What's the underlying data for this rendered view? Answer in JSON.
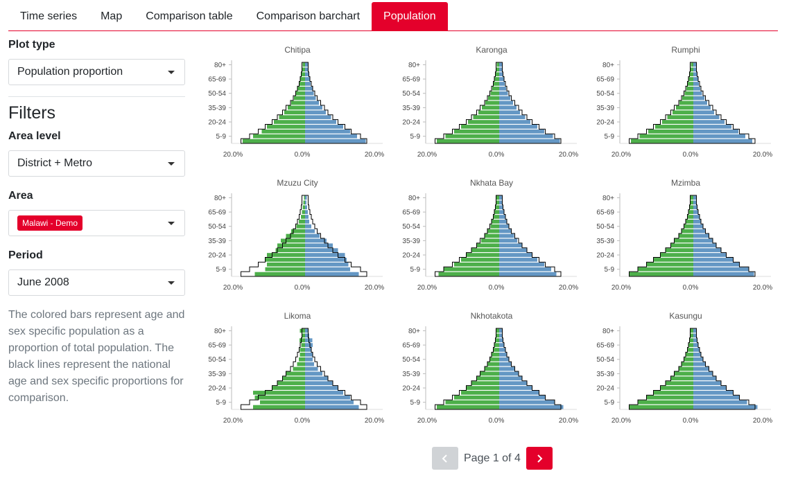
{
  "tabs": [
    {
      "label": "Time series",
      "active": false
    },
    {
      "label": "Map",
      "active": false
    },
    {
      "label": "Comparison table",
      "active": false
    },
    {
      "label": "Comparison barchart",
      "active": false
    },
    {
      "label": "Population",
      "active": true
    }
  ],
  "sidebar": {
    "plot_type_label": "Plot type",
    "plot_type_value": "Population proportion",
    "filters_title": "Filters",
    "area_level_label": "Area level",
    "area_level_value": "District + Metro",
    "area_label": "Area",
    "area_chip": "Malawi - Demo",
    "period_label": "Period",
    "period_value": "June 2008",
    "description": "The colored bars represent age and sex specific population as a proportion of total population. The black lines represent the national age and sex specific proportions for comparison."
  },
  "pagination": {
    "text": "Page 1 of 4"
  },
  "colors": {
    "accent": "#e4002b",
    "male": "#4daf4a",
    "female": "#6497c4",
    "reference": "#000000"
  },
  "chart_data": {
    "type": "bar",
    "shared": {
      "age_groups": [
        "0-4",
        "5-9",
        "10-14",
        "15-19",
        "20-24",
        "25-29",
        "30-34",
        "35-39",
        "40-44",
        "45-49",
        "50-54",
        "55-59",
        "60-64",
        "65-69",
        "70-74",
        "75-79",
        "80+"
      ],
      "y_tick_labels": [
        "80+",
        "65-69",
        "50-54",
        "35-39",
        "20-24",
        "5-9"
      ],
      "x_tick_labels": [
        "20.0%",
        "0.0%",
        "20.0%"
      ],
      "xlim": [
        -20,
        20
      ],
      "reference_male": [
        18.5,
        16,
        13.5,
        11.5,
        9.5,
        8,
        6.5,
        5.5,
        4.2,
        3.4,
        2.7,
        2.2,
        1.7,
        1.4,
        1.1,
        0.9,
        0.9
      ],
      "reference_female": [
        17.8,
        16,
        13.3,
        11.5,
        9.5,
        8,
        6.6,
        5.6,
        4.5,
        3.5,
        2.8,
        2.2,
        1.8,
        1.4,
        1.1,
        0.9,
        0.9
      ]
    },
    "charts": [
      {
        "title": "Chitipa",
        "male": [
          18,
          15,
          12.5,
          11,
          9,
          7.5,
          6,
          5,
          4,
          3.2,
          2.6,
          2.1,
          1.6,
          1.3,
          1,
          0.8,
          0.7
        ],
        "female": [
          17.5,
          15,
          13,
          11,
          9,
          7.5,
          6,
          5,
          4,
          3.1,
          2.5,
          2.1,
          1.6,
          1.3,
          1,
          0.8,
          0.8
        ]
      },
      {
        "title": "Karonga",
        "male": [
          18,
          15.5,
          13,
          11,
          9,
          7.5,
          6,
          5,
          4,
          3.2,
          2.5,
          2,
          1.6,
          1.3,
          1,
          0.8,
          0.7
        ],
        "female": [
          17.5,
          15.5,
          13,
          11,
          9,
          7.5,
          6,
          5,
          4,
          3.2,
          2.5,
          2,
          1.6,
          1.3,
          1,
          0.8,
          0.8
        ]
      },
      {
        "title": "Rumphi",
        "male": [
          18,
          15.5,
          13,
          11,
          9,
          7.5,
          6,
          5,
          4,
          3.2,
          2.5,
          2,
          1.6,
          1.3,
          1,
          0.8,
          0.7
        ],
        "female": [
          17,
          15,
          13,
          11,
          9,
          7.5,
          6,
          5,
          4,
          3.2,
          2.5,
          2,
          1.6,
          1.3,
          1,
          0.8,
          0.8
        ]
      },
      {
        "title": "Mzuzu City",
        "male": [
          14.5,
          11.5,
          11,
          11.5,
          11,
          8.5,
          8,
          7,
          5.5,
          4,
          2.5,
          1.8,
          1.2,
          0.9,
          0.7,
          0.5,
          0.3
        ],
        "female": [
          15.5,
          13,
          12.5,
          12,
          11.5,
          9.5,
          8,
          6.2,
          4.2,
          2.8,
          1.8,
          1.2,
          1,
          0.8,
          0.6,
          0.4,
          0.5
        ]
      },
      {
        "title": "Nkhata Bay",
        "male": [
          17.5,
          16,
          13,
          11,
          9.5,
          8,
          6.5,
          5.2,
          4.1,
          3.3,
          2.5,
          2.1,
          1.7,
          1.3,
          1,
          0.8,
          0.9
        ],
        "female": [
          16.5,
          15,
          13,
          11,
          9.5,
          8,
          6.6,
          5.2,
          4.3,
          3.4,
          2.7,
          2.2,
          1.8,
          1.4,
          1.2,
          0.9,
          0.8
        ]
      },
      {
        "title": "Mzimba",
        "male": [
          18.5,
          16,
          13.5,
          11.5,
          9.5,
          8,
          6.5,
          5.5,
          4.2,
          3.4,
          2.6,
          2.1,
          1.7,
          1.4,
          1.1,
          0.9,
          0.9
        ],
        "female": [
          17.5,
          16,
          13.3,
          11.5,
          9.5,
          8,
          6.6,
          5.6,
          4.5,
          3.5,
          2.7,
          2.2,
          1.8,
          1.4,
          1.1,
          0.9,
          0.8
        ]
      },
      {
        "title": "Likoma",
        "male": [
          15,
          13,
          14.5,
          15,
          9.5,
          8,
          6.5,
          5.5,
          3.5,
          2.3,
          1.8,
          1.5,
          1.5,
          1.1,
          1.6,
          1,
          1.5
        ],
        "female": [
          15.5,
          14,
          13,
          11,
          9.5,
          8,
          6.5,
          5,
          3.7,
          2.6,
          2.2,
          2.3,
          1.8,
          2.2,
          2.1,
          1.2,
          0.8
        ]
      },
      {
        "title": "Nkhotakota",
        "male": [
          18,
          15.5,
          13,
          11,
          9.5,
          8,
          6.5,
          5.5,
          4.2,
          3.4,
          2.6,
          2.1,
          1.7,
          1.4,
          1.1,
          0.9,
          0.9
        ],
        "female": [
          18.5,
          16,
          13.3,
          11.5,
          9.5,
          8,
          6.6,
          5.6,
          4.5,
          3.5,
          2.7,
          2.2,
          1.8,
          1.4,
          1.1,
          0.9,
          0.8
        ]
      },
      {
        "title": "Kasungu",
        "male": [
          18.5,
          16,
          13.5,
          11.5,
          9.5,
          8,
          6.5,
          5.5,
          4.2,
          3.4,
          2.6,
          2.1,
          1.7,
          1.4,
          1.1,
          0.9,
          0.9
        ],
        "female": [
          18.5,
          15.5,
          13.3,
          11.5,
          9.5,
          8,
          6.6,
          5.6,
          4.5,
          3.5,
          2.7,
          2.2,
          1.8,
          1.4,
          1.1,
          0.9,
          0.8
        ]
      }
    ]
  }
}
